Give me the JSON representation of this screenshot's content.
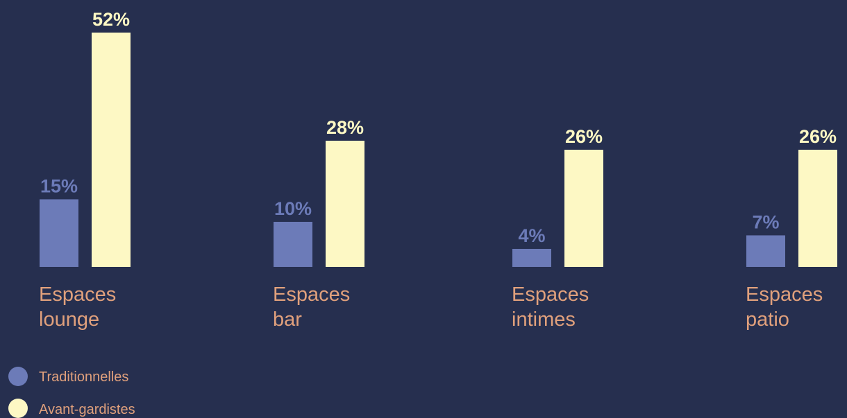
{
  "chart_data": {
    "type": "bar",
    "categories": [
      [
        "Espaces",
        "lounge"
      ],
      [
        "Espaces",
        "bar"
      ],
      [
        "Espaces",
        "intimes"
      ],
      [
        "Espaces",
        "patio"
      ]
    ],
    "series": [
      {
        "name": "Traditionnelles",
        "color": "#6c7bb8",
        "values": [
          15,
          10,
          4,
          7
        ],
        "labels": [
          "15%",
          "10%",
          "4%",
          "7%"
        ]
      },
      {
        "name": "Avant-gardistes",
        "color": "#fdf8c4",
        "values": [
          52,
          28,
          26,
          26
        ],
        "labels": [
          "52%",
          "28%",
          "26%",
          "26%"
        ]
      }
    ],
    "unit": "%",
    "ylim": [
      0,
      52
    ],
    "grid": false,
    "legend_position": "bottom-left",
    "colors": {
      "background": "#262f4f",
      "category_text": "#e0a07c"
    }
  }
}
